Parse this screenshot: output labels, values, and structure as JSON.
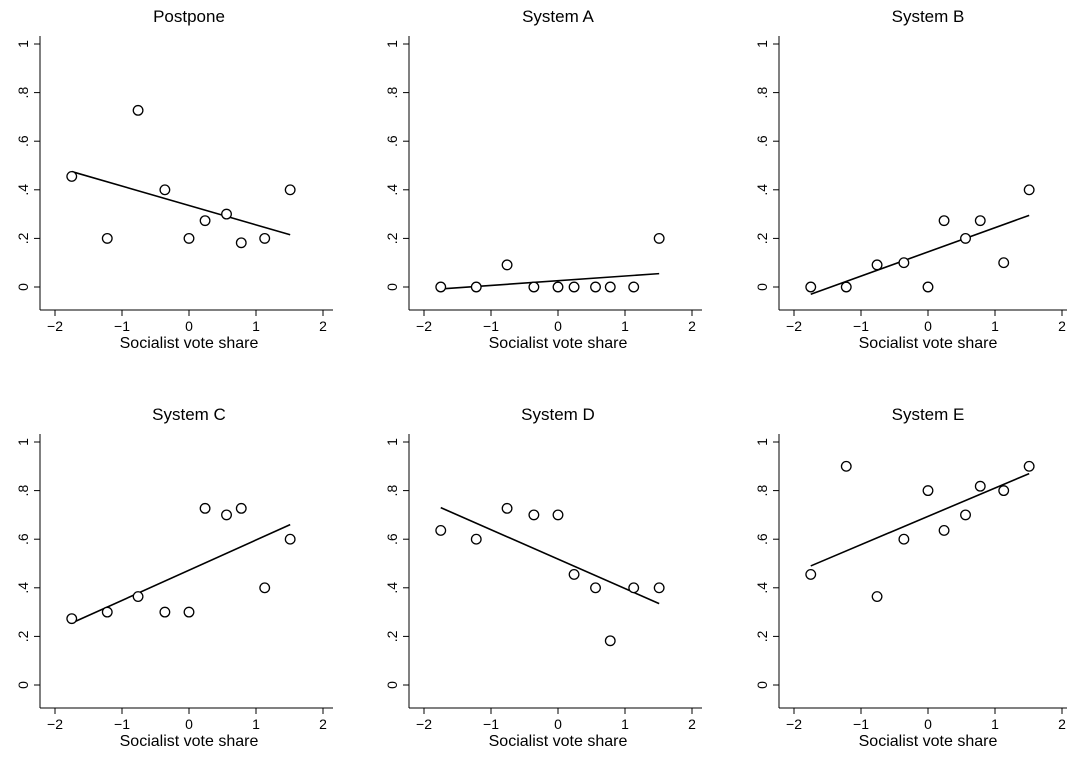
{
  "chart_data": [
    {
      "type": "scatter",
      "title": "Postpone",
      "xlabel": "Socialist vote share",
      "ylabel": "",
      "xlim": [
        -2,
        2
      ],
      "ylim": [
        0,
        1
      ],
      "xticks": [
        "−2",
        "−1",
        "0",
        "1",
        "2"
      ],
      "yticks": [
        "0",
        ".2",
        ".4",
        ".6",
        ".8",
        "1"
      ],
      "x": [
        -1.75,
        -1.22,
        -0.76,
        -0.36,
        0.0,
        0.24,
        0.56,
        0.78,
        1.13,
        1.51
      ],
      "y": [
        0.455,
        0.2,
        0.727,
        0.4,
        0.2,
        0.273,
        0.3,
        0.182,
        0.2,
        0.4
      ],
      "fit": {
        "x": [
          -1.75,
          1.51
        ],
        "y": [
          0.475,
          0.215
        ]
      }
    },
    {
      "type": "scatter",
      "title": "System A",
      "xlabel": "Socialist vote share",
      "ylabel": "",
      "xlim": [
        -2,
        2
      ],
      "ylim": [
        0,
        1
      ],
      "xticks": [
        "−2",
        "−1",
        "0",
        "1",
        "2"
      ],
      "yticks": [
        "0",
        ".2",
        ".4",
        ".6",
        ".8",
        "1"
      ],
      "x": [
        -1.75,
        -1.22,
        -0.76,
        -0.36,
        0.0,
        0.24,
        0.56,
        0.78,
        1.13,
        1.51
      ],
      "y": [
        0.0,
        0.0,
        0.091,
        0.0,
        0.0,
        0.0,
        0.0,
        0.0,
        0.0,
        0.2
      ],
      "fit": {
        "x": [
          -1.75,
          1.51
        ],
        "y": [
          -0.008,
          0.055
        ]
      }
    },
    {
      "type": "scatter",
      "title": "System B",
      "xlabel": "Socialist vote share",
      "ylabel": "",
      "xlim": [
        -2,
        2
      ],
      "ylim": [
        0,
        1
      ],
      "xticks": [
        "−2",
        "−1",
        "0",
        "1",
        "2"
      ],
      "yticks": [
        "0",
        ".2",
        ".4",
        ".6",
        ".8",
        "1"
      ],
      "x": [
        -1.75,
        -1.22,
        -0.76,
        -0.36,
        0.0,
        0.24,
        0.56,
        0.78,
        1.13,
        1.51
      ],
      "y": [
        0.0,
        0.0,
        0.091,
        0.1,
        0.0,
        0.273,
        0.2,
        0.273,
        0.1,
        0.4
      ],
      "fit": {
        "x": [
          -1.75,
          1.51
        ],
        "y": [
          -0.03,
          0.295
        ]
      }
    },
    {
      "type": "scatter",
      "title": "System C",
      "xlabel": "Socialist vote share",
      "ylabel": "",
      "xlim": [
        -2,
        2
      ],
      "ylim": [
        0,
        1
      ],
      "xticks": [
        "−2",
        "−1",
        "0",
        "1",
        "2"
      ],
      "yticks": [
        "0",
        ".2",
        ".4",
        ".6",
        ".8",
        "1"
      ],
      "x": [
        -1.75,
        -1.22,
        -0.76,
        -0.36,
        0.0,
        0.24,
        0.56,
        0.78,
        1.13,
        1.51
      ],
      "y": [
        0.273,
        0.3,
        0.364,
        0.3,
        0.3,
        0.727,
        0.7,
        0.727,
        0.4,
        0.6
      ],
      "fit": {
        "x": [
          -1.75,
          1.51
        ],
        "y": [
          0.255,
          0.66
        ]
      }
    },
    {
      "type": "scatter",
      "title": "System D",
      "xlabel": "Socialist vote share",
      "ylabel": "",
      "xlim": [
        -2,
        2
      ],
      "ylim": [
        0,
        1
      ],
      "xticks": [
        "−2",
        "−1",
        "0",
        "1",
        "2"
      ],
      "yticks": [
        "0",
        ".2",
        ".4",
        ".6",
        ".8",
        "1"
      ],
      "x": [
        -1.75,
        -1.22,
        -0.76,
        -0.36,
        0.0,
        0.24,
        0.56,
        0.78,
        1.13,
        1.51
      ],
      "y": [
        0.636,
        0.6,
        0.727,
        0.7,
        0.7,
        0.455,
        0.4,
        0.182,
        0.4,
        0.4
      ],
      "fit": {
        "x": [
          -1.75,
          1.51
        ],
        "y": [
          0.73,
          0.335
        ]
      }
    },
    {
      "type": "scatter",
      "title": "System E",
      "xlabel": "Socialist vote share",
      "ylabel": "",
      "xlim": [
        -2,
        2
      ],
      "ylim": [
        0,
        1
      ],
      "xticks": [
        "−2",
        "−1",
        "0",
        "1",
        "2"
      ],
      "yticks": [
        "0",
        ".2",
        ".4",
        ".6",
        ".8",
        "1"
      ],
      "x": [
        -1.75,
        -1.22,
        -0.76,
        -0.36,
        0.0,
        0.24,
        0.56,
        0.78,
        1.13,
        1.51
      ],
      "y": [
        0.455,
        0.9,
        0.364,
        0.6,
        0.8,
        0.636,
        0.7,
        0.818,
        0.8,
        0.9
      ],
      "fit": {
        "x": [
          -1.75,
          1.51
        ],
        "y": [
          0.49,
          0.87
        ]
      }
    }
  ]
}
